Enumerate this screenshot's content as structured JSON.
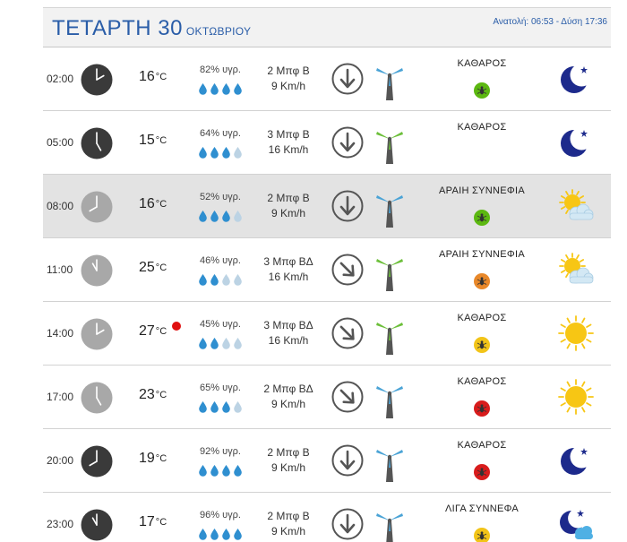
{
  "header": {
    "day": "ΤΕΤΑΡΤΗ 30",
    "month": "ΟΚΤΩΒΡΙΟΥ",
    "sun_times": "Ανατολή: 06:53 - Δύση 17:36"
  },
  "temp_unit": "°C",
  "rows": [
    {
      "time": "02:00",
      "temp": "16",
      "humidity": "82% υγρ.",
      "drops_filled": 4,
      "wind_force": "2 Μπφ Β",
      "wind_speed": "9 Km/h",
      "wind_dir": "N",
      "turbine": "blue",
      "sky": "ΚΑΘΑΡΟΣ",
      "bug": "green",
      "icon": "moon-icon",
      "night_clock": true,
      "highlight": false,
      "hot": false
    },
    {
      "time": "05:00",
      "temp": "15",
      "humidity": "64% υγρ.",
      "drops_filled": 3,
      "wind_force": "3 Μπφ Β",
      "wind_speed": "16 Km/h",
      "wind_dir": "N",
      "turbine": "green",
      "sky": "ΚΑΘΑΡΟΣ",
      "bug": "",
      "icon": "moon-icon",
      "night_clock": true,
      "highlight": false,
      "hot": false
    },
    {
      "time": "08:00",
      "temp": "16",
      "humidity": "52% υγρ.",
      "drops_filled": 3,
      "wind_force": "2 Μπφ Β",
      "wind_speed": "9 Km/h",
      "wind_dir": "N",
      "turbine": "blue",
      "sky": "ΑΡΑΙΗ ΣΥΝΝΕΦΙΑ",
      "bug": "green",
      "icon": "sun-cloud-icon",
      "night_clock": false,
      "highlight": true,
      "hot": false
    },
    {
      "time": "11:00",
      "temp": "25",
      "humidity": "46% υγρ.",
      "drops_filled": 2,
      "wind_force": "3 Μπφ ΒΔ",
      "wind_speed": "16 Km/h",
      "wind_dir": "NW",
      "turbine": "green",
      "sky": "ΑΡΑΙΗ ΣΥΝΝΕΦΙΑ",
      "bug": "orange",
      "icon": "sun-cloud-icon",
      "night_clock": false,
      "highlight": false,
      "hot": false
    },
    {
      "time": "14:00",
      "temp": "27",
      "humidity": "45% υγρ.",
      "drops_filled": 2,
      "wind_force": "3 Μπφ ΒΔ",
      "wind_speed": "16 Km/h",
      "wind_dir": "NW",
      "turbine": "green",
      "sky": "ΚΑΘΑΡΟΣ",
      "bug": "yellow",
      "icon": "sun-icon",
      "night_clock": false,
      "highlight": false,
      "hot": true
    },
    {
      "time": "17:00",
      "temp": "23",
      "humidity": "65% υγρ.",
      "drops_filled": 3,
      "wind_force": "2 Μπφ ΒΔ",
      "wind_speed": "9 Km/h",
      "wind_dir": "NW",
      "turbine": "blue",
      "sky": "ΚΑΘΑΡΟΣ",
      "bug": "red",
      "icon": "sun-icon",
      "night_clock": false,
      "highlight": false,
      "hot": false
    },
    {
      "time": "20:00",
      "temp": "19",
      "humidity": "92% υγρ.",
      "drops_filled": 4,
      "wind_force": "2 Μπφ Β",
      "wind_speed": "9 Km/h",
      "wind_dir": "N",
      "turbine": "blue",
      "sky": "ΚΑΘΑΡΟΣ",
      "bug": "red",
      "icon": "moon-icon",
      "night_clock": true,
      "highlight": false,
      "hot": false
    },
    {
      "time": "23:00",
      "temp": "17",
      "humidity": "96% υγρ.",
      "drops_filled": 4,
      "wind_force": "2 Μπφ Β",
      "wind_speed": "9 Km/h",
      "wind_dir": "N",
      "turbine": "blue",
      "sky": "ΛΙΓΑ ΣΥΝΝΕΦΑ",
      "bug": "yellow",
      "icon": "moon-cloud-icon",
      "night_clock": true,
      "highlight": false,
      "hot": false
    }
  ],
  "colors": {
    "accent": "#2a5da8",
    "bug_green": "#5cb811",
    "bug_orange": "#e8882a",
    "bug_yellow": "#f2c418",
    "bug_red": "#d81c1c",
    "turbine_blue": "#4aa3d6",
    "turbine_green": "#6cbf3a",
    "moon": "#1d2a8c",
    "sun": "#f7c614"
  }
}
